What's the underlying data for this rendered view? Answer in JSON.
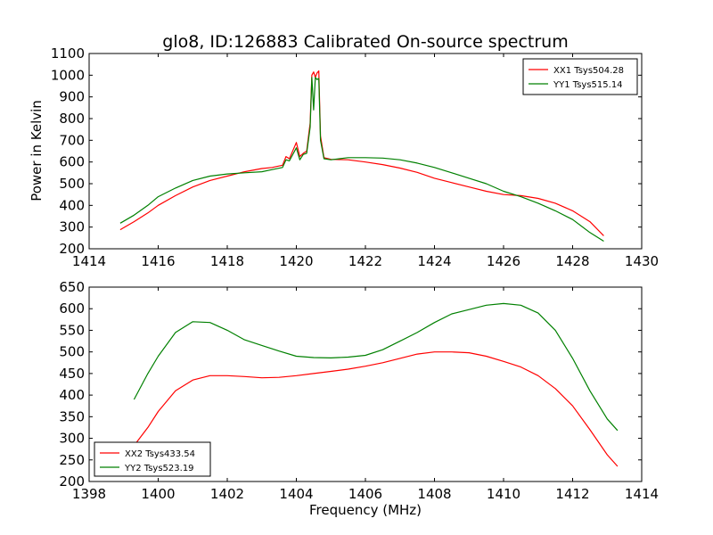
{
  "figure": {
    "title": "glo8, ID:126883 Calibrated On-source spectrum",
    "ylabel": "Power in Kelvin",
    "xlabel": "Frequency (MHz)"
  },
  "chart_data": [
    {
      "type": "line",
      "xlim": [
        1414,
        1430
      ],
      "ylim": [
        200,
        1100
      ],
      "xticks": [
        1414,
        1416,
        1418,
        1420,
        1422,
        1424,
        1426,
        1428,
        1430
      ],
      "yticks": [
        200,
        300,
        400,
        500,
        600,
        700,
        800,
        900,
        1000,
        1100
      ],
      "grid": false,
      "legend_position": "top-right",
      "series": [
        {
          "name": "XX1 Tsys504.28",
          "color": "#ff0000",
          "points": [
            [
              1414.9,
              288
            ],
            [
              1415.3,
              325
            ],
            [
              1415.7,
              365
            ],
            [
              1416.0,
              400
            ],
            [
              1416.5,
              445
            ],
            [
              1417.0,
              485
            ],
            [
              1417.5,
              515
            ],
            [
              1418.0,
              535
            ],
            [
              1418.5,
              555
            ],
            [
              1419.0,
              570
            ],
            [
              1419.3,
              575
            ],
            [
              1419.6,
              585
            ],
            [
              1419.7,
              625
            ],
            [
              1419.8,
              615
            ],
            [
              1420.0,
              690
            ],
            [
              1420.1,
              625
            ],
            [
              1420.2,
              640
            ],
            [
              1420.3,
              650
            ],
            [
              1420.4,
              780
            ],
            [
              1420.45,
              1000
            ],
            [
              1420.5,
              1015
            ],
            [
              1420.55,
              990
            ],
            [
              1420.6,
              1010
            ],
            [
              1420.65,
              1020
            ],
            [
              1420.7,
              720
            ],
            [
              1420.8,
              620
            ],
            [
              1421.0,
              612
            ],
            [
              1421.5,
              610
            ],
            [
              1422.0,
              600
            ],
            [
              1422.5,
              588
            ],
            [
              1423.0,
              572
            ],
            [
              1423.5,
              552
            ],
            [
              1424.0,
              525
            ],
            [
              1424.5,
              505
            ],
            [
              1425.0,
              485
            ],
            [
              1425.5,
              465
            ],
            [
              1426.0,
              450
            ],
            [
              1426.5,
              445
            ],
            [
              1427.0,
              432
            ],
            [
              1427.5,
              410
            ],
            [
              1428.0,
              375
            ],
            [
              1428.5,
              325
            ],
            [
              1428.9,
              260
            ]
          ]
        },
        {
          "name": "YY1 Tsys515.14",
          "color": "#008000",
          "points": [
            [
              1414.9,
              318
            ],
            [
              1415.3,
              355
            ],
            [
              1415.7,
              400
            ],
            [
              1416.0,
              440
            ],
            [
              1416.5,
              480
            ],
            [
              1417.0,
              515
            ],
            [
              1417.5,
              535
            ],
            [
              1418.0,
              545
            ],
            [
              1418.5,
              550
            ],
            [
              1419.0,
              555
            ],
            [
              1419.3,
              565
            ],
            [
              1419.6,
              575
            ],
            [
              1419.7,
              610
            ],
            [
              1419.8,
              605
            ],
            [
              1420.0,
              665
            ],
            [
              1420.1,
              610
            ],
            [
              1420.2,
              635
            ],
            [
              1420.3,
              640
            ],
            [
              1420.4,
              760
            ],
            [
              1420.45,
              990
            ],
            [
              1420.5,
              840
            ],
            [
              1420.55,
              990
            ],
            [
              1420.6,
              980
            ],
            [
              1420.65,
              985
            ],
            [
              1420.7,
              700
            ],
            [
              1420.8,
              615
            ],
            [
              1421.0,
              610
            ],
            [
              1421.5,
              620
            ],
            [
              1422.0,
              620
            ],
            [
              1422.5,
              618
            ],
            [
              1423.0,
              610
            ],
            [
              1423.5,
              595
            ],
            [
              1424.0,
              575
            ],
            [
              1424.5,
              550
            ],
            [
              1425.0,
              525
            ],
            [
              1425.5,
              500
            ],
            [
              1426.0,
              465
            ],
            [
              1426.5,
              440
            ],
            [
              1427.0,
              410
            ],
            [
              1427.5,
              375
            ],
            [
              1428.0,
              335
            ],
            [
              1428.5,
              275
            ],
            [
              1428.9,
              235
            ]
          ]
        }
      ]
    },
    {
      "type": "line",
      "xlim": [
        1398,
        1414
      ],
      "ylim": [
        200,
        650
      ],
      "xticks": [
        1398,
        1400,
        1402,
        1404,
        1406,
        1408,
        1410,
        1412,
        1414
      ],
      "yticks": [
        200,
        250,
        300,
        350,
        400,
        450,
        500,
        550,
        600,
        650
      ],
      "grid": false,
      "legend_position": "bottom-left",
      "series": [
        {
          "name": "XX2 Tsys433.54",
          "color": "#ff0000",
          "points": [
            [
              1399.3,
              283
            ],
            [
              1399.7,
              325
            ],
            [
              1400.0,
              362
            ],
            [
              1400.5,
              410
            ],
            [
              1401.0,
              435
            ],
            [
              1401.5,
              445
            ],
            [
              1402.0,
              445
            ],
            [
              1402.5,
              443
            ],
            [
              1403.0,
              440
            ],
            [
              1403.5,
              441
            ],
            [
              1404.0,
              445
            ],
            [
              1404.5,
              450
            ],
            [
              1405.0,
              455
            ],
            [
              1405.5,
              460
            ],
            [
              1406.0,
              467
            ],
            [
              1406.5,
              475
            ],
            [
              1407.0,
              485
            ],
            [
              1407.5,
              495
            ],
            [
              1408.0,
              500
            ],
            [
              1408.5,
              500
            ],
            [
              1409.0,
              498
            ],
            [
              1409.5,
              490
            ],
            [
              1410.0,
              478
            ],
            [
              1410.5,
              465
            ],
            [
              1411.0,
              445
            ],
            [
              1411.5,
              415
            ],
            [
              1412.0,
              375
            ],
            [
              1412.5,
              320
            ],
            [
              1413.0,
              262
            ],
            [
              1413.3,
              235
            ]
          ]
        },
        {
          "name": "YY2 Tsys523.19",
          "color": "#008000",
          "points": [
            [
              1399.3,
              390
            ],
            [
              1399.7,
              450
            ],
            [
              1400.0,
              490
            ],
            [
              1400.5,
              545
            ],
            [
              1401.0,
              570
            ],
            [
              1401.5,
              568
            ],
            [
              1402.0,
              550
            ],
            [
              1402.5,
              528
            ],
            [
              1403.0,
              515
            ],
            [
              1403.5,
              502
            ],
            [
              1404.0,
              490
            ],
            [
              1404.5,
              487
            ],
            [
              1405.0,
              486
            ],
            [
              1405.5,
              488
            ],
            [
              1406.0,
              492
            ],
            [
              1406.5,
              505
            ],
            [
              1407.0,
              525
            ],
            [
              1407.5,
              545
            ],
            [
              1408.0,
              568
            ],
            [
              1408.5,
              588
            ],
            [
              1409.0,
              598
            ],
            [
              1409.5,
              608
            ],
            [
              1410.0,
              612
            ],
            [
              1410.5,
              608
            ],
            [
              1411.0,
              590
            ],
            [
              1411.5,
              550
            ],
            [
              1412.0,
              485
            ],
            [
              1412.5,
              410
            ],
            [
              1413.0,
              345
            ],
            [
              1413.3,
              318
            ]
          ]
        }
      ]
    }
  ]
}
